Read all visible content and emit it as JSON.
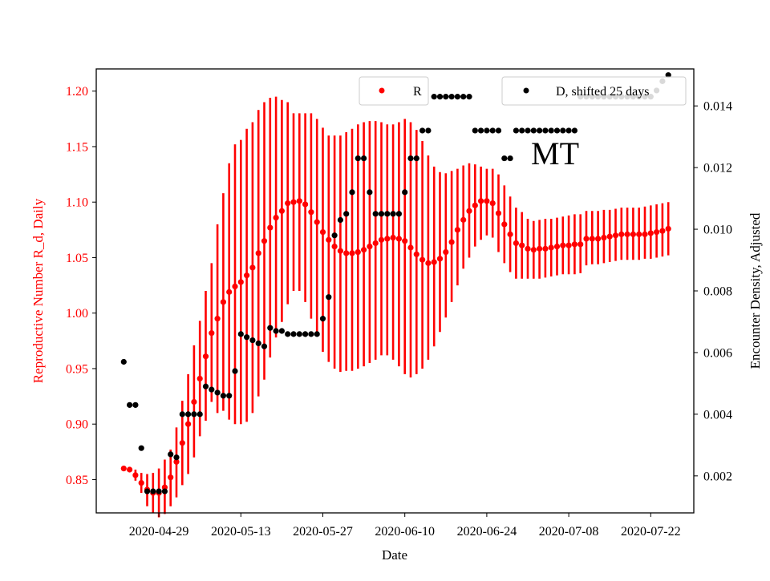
{
  "chart_data": {
    "type": "scatter",
    "annotation": "MT",
    "xlabel": "Date",
    "ylabel_left": "Reproductive Number R_d, Daily",
    "ylabel_right": "Encounter Density, Adjusted",
    "x_start": "2020-04-22",
    "x_ticks": [
      "2020-04-29",
      "2020-05-13",
      "2020-05-27",
      "2020-06-10",
      "2020-06-24",
      "2020-07-08",
      "2020-07-22"
    ],
    "ylim_left": [
      0.82,
      1.22
    ],
    "yticks_left": [
      "0.85",
      "0.90",
      "0.95",
      "1.00",
      "1.05",
      "1.10",
      "1.15",
      "1.20"
    ],
    "ylim_right": [
      0.0008,
      0.0152
    ],
    "yticks_right": [
      "0.002",
      "0.004",
      "0.006",
      "0.008",
      "0.010",
      "0.012",
      "0.014"
    ],
    "colors": {
      "R": "#ff0000",
      "D": "#000000"
    },
    "legend": [
      {
        "label": "R",
        "color": "#ff0000",
        "placement": "upper-center"
      },
      {
        "label": "D, shifted 25 days",
        "color": "#000000",
        "placement": "upper-right"
      }
    ],
    "series": [
      {
        "name": "R",
        "axis": "left",
        "x": [
          "2020-04-23",
          "2020-04-24",
          "2020-04-25",
          "2020-04-26",
          "2020-04-27",
          "2020-04-28",
          "2020-04-29",
          "2020-04-30",
          "2020-05-01",
          "2020-05-02",
          "2020-05-03",
          "2020-05-04",
          "2020-05-05",
          "2020-05-06",
          "2020-05-07",
          "2020-05-08",
          "2020-05-09",
          "2020-05-10",
          "2020-05-11",
          "2020-05-12",
          "2020-05-13",
          "2020-05-14",
          "2020-05-15",
          "2020-05-16",
          "2020-05-17",
          "2020-05-18",
          "2020-05-19",
          "2020-05-20",
          "2020-05-21",
          "2020-05-22",
          "2020-05-23",
          "2020-05-24",
          "2020-05-25",
          "2020-05-26",
          "2020-05-27",
          "2020-05-28",
          "2020-05-29",
          "2020-05-30",
          "2020-05-31",
          "2020-06-01",
          "2020-06-02",
          "2020-06-03",
          "2020-06-04",
          "2020-06-05",
          "2020-06-06",
          "2020-06-07",
          "2020-06-08",
          "2020-06-09",
          "2020-06-10",
          "2020-06-11",
          "2020-06-12",
          "2020-06-13",
          "2020-06-14",
          "2020-06-15",
          "2020-06-16",
          "2020-06-17",
          "2020-06-18",
          "2020-06-19",
          "2020-06-20",
          "2020-06-21",
          "2020-06-22",
          "2020-06-23",
          "2020-06-24",
          "2020-06-25",
          "2020-06-26",
          "2020-06-27",
          "2020-06-28",
          "2020-06-29",
          "2020-06-30",
          "2020-07-01",
          "2020-07-02",
          "2020-07-03",
          "2020-07-04",
          "2020-07-05",
          "2020-07-06",
          "2020-07-07",
          "2020-07-08",
          "2020-07-09",
          "2020-07-10",
          "2020-07-11",
          "2020-07-12",
          "2020-07-13",
          "2020-07-14",
          "2020-07-15",
          "2020-07-16",
          "2020-07-17",
          "2020-07-18",
          "2020-07-19",
          "2020-07-20",
          "2020-07-21",
          "2020-07-22",
          "2020-07-23",
          "2020-07-24",
          "2020-07-25"
        ],
        "values": [
          0.86,
          0.859,
          0.854,
          0.847,
          0.841,
          0.838,
          0.838,
          0.843,
          0.852,
          0.866,
          0.883,
          0.9,
          0.92,
          0.941,
          0.961,
          0.982,
          0.995,
          1.01,
          1.019,
          1.024,
          1.028,
          1.034,
          1.041,
          1.054,
          1.065,
          1.077,
          1.086,
          1.092,
          1.099,
          1.1,
          1.101,
          1.098,
          1.091,
          1.082,
          1.073,
          1.066,
          1.06,
          1.056,
          1.054,
          1.054,
          1.055,
          1.057,
          1.06,
          1.063,
          1.066,
          1.067,
          1.068,
          1.067,
          1.065,
          1.059,
          1.053,
          1.048,
          1.045,
          1.046,
          1.049,
          1.055,
          1.064,
          1.075,
          1.084,
          1.092,
          1.097,
          1.101,
          1.101,
          1.099,
          1.09,
          1.08,
          1.071,
          1.063,
          1.061,
          1.058,
          1.057,
          1.058,
          1.058,
          1.059,
          1.06,
          1.061,
          1.061,
          1.062,
          1.062,
          1.067,
          1.067,
          1.067,
          1.068,
          1.069,
          1.07,
          1.071,
          1.071,
          1.071,
          1.071,
          1.071,
          1.072,
          1.073,
          1.074,
          1.076
        ],
        "err_low": [
          0.86,
          0.859,
          0.849,
          0.838,
          0.826,
          0.82,
          0.816,
          0.819,
          0.826,
          0.834,
          0.845,
          0.855,
          0.87,
          0.889,
          0.903,
          0.92,
          0.91,
          0.912,
          0.904,
          0.9,
          0.9,
          0.902,
          0.91,
          0.925,
          0.94,
          0.96,
          0.978,
          0.992,
          1.008,
          1.02,
          1.02,
          1.01,
          0.995,
          0.98,
          0.965,
          0.956,
          0.95,
          0.947,
          0.948,
          0.948,
          0.95,
          0.952,
          0.955,
          0.958,
          0.962,
          0.962,
          0.958,
          0.952,
          0.945,
          0.942,
          0.945,
          0.95,
          0.958,
          0.97,
          0.983,
          0.996,
          1.01,
          1.025,
          1.04,
          1.05,
          1.06,
          1.066,
          1.07,
          1.068,
          1.055,
          1.045,
          1.037,
          1.031,
          1.031,
          1.031,
          1.031,
          1.031,
          1.032,
          1.033,
          1.034,
          1.035,
          1.035,
          1.035,
          1.036,
          1.043,
          1.044,
          1.044,
          1.045,
          1.046,
          1.047,
          1.048,
          1.048,
          1.048,
          1.048,
          1.049,
          1.049,
          1.05,
          1.051,
          1.052
        ],
        "err_high": [
          0.86,
          0.859,
          0.859,
          0.856,
          0.855,
          0.856,
          0.86,
          0.868,
          0.877,
          0.897,
          0.921,
          0.945,
          0.971,
          0.993,
          1.02,
          1.045,
          1.08,
          1.108,
          1.135,
          1.152,
          1.156,
          1.166,
          1.172,
          1.183,
          1.19,
          1.194,
          1.195,
          1.192,
          1.19,
          1.18,
          1.18,
          1.18,
          1.18,
          1.175,
          1.167,
          1.16,
          1.16,
          1.16,
          1.163,
          1.166,
          1.17,
          1.172,
          1.173,
          1.173,
          1.172,
          1.17,
          1.17,
          1.172,
          1.175,
          1.172,
          1.165,
          1.155,
          1.142,
          1.132,
          1.127,
          1.126,
          1.128,
          1.13,
          1.133,
          1.135,
          1.134,
          1.132,
          1.13,
          1.13,
          1.125,
          1.115,
          1.105,
          1.095,
          1.091,
          1.085,
          1.083,
          1.084,
          1.085,
          1.085,
          1.086,
          1.087,
          1.088,
          1.089,
          1.089,
          1.092,
          1.092,
          1.092,
          1.093,
          1.093,
          1.094,
          1.095,
          1.095,
          1.095,
          1.095,
          1.096,
          1.097,
          1.098,
          1.099,
          1.1
        ]
      },
      {
        "name": "D, shifted 25 days",
        "axis": "right",
        "x": [
          "2020-04-23",
          "2020-04-24",
          "2020-04-25",
          "2020-04-26",
          "2020-04-27",
          "2020-04-28",
          "2020-04-29",
          "2020-04-30",
          "2020-05-01",
          "2020-05-02",
          "2020-05-03",
          "2020-05-04",
          "2020-05-05",
          "2020-05-06",
          "2020-05-07",
          "2020-05-08",
          "2020-05-09",
          "2020-05-10",
          "2020-05-11",
          "2020-05-12",
          "2020-05-13",
          "2020-05-14",
          "2020-05-15",
          "2020-05-16",
          "2020-05-17",
          "2020-05-18",
          "2020-05-19",
          "2020-05-20",
          "2020-05-21",
          "2020-05-22",
          "2020-05-23",
          "2020-05-24",
          "2020-05-25",
          "2020-05-26",
          "2020-05-27",
          "2020-05-28",
          "2020-05-29",
          "2020-05-30",
          "2020-05-31",
          "2020-06-01",
          "2020-06-02",
          "2020-06-03",
          "2020-06-04",
          "2020-06-05",
          "2020-06-06",
          "2020-06-07",
          "2020-06-08",
          "2020-06-09",
          "2020-06-10",
          "2020-06-11",
          "2020-06-12",
          "2020-06-13",
          "2020-06-14",
          "2020-06-15",
          "2020-06-16",
          "2020-06-17",
          "2020-06-18",
          "2020-06-19",
          "2020-06-20",
          "2020-06-21",
          "2020-06-22",
          "2020-06-23",
          "2020-06-24",
          "2020-06-25",
          "2020-06-26",
          "2020-06-27",
          "2020-06-28",
          "2020-06-29",
          "2020-06-30",
          "2020-07-01",
          "2020-07-02",
          "2020-07-03",
          "2020-07-04",
          "2020-07-05",
          "2020-07-06",
          "2020-07-07",
          "2020-07-08",
          "2020-07-09",
          "2020-07-10",
          "2020-07-11",
          "2020-07-12",
          "2020-07-13",
          "2020-07-14",
          "2020-07-15",
          "2020-07-16",
          "2020-07-17",
          "2020-07-18",
          "2020-07-19",
          "2020-07-20",
          "2020-07-21",
          "2020-07-22",
          "2020-07-23",
          "2020-07-24",
          "2020-07-25"
        ],
        "values": [
          0.0057,
          0.0043,
          0.0043,
          0.0029,
          0.0015,
          0.0015,
          0.0015,
          0.0015,
          0.0027,
          0.0026,
          0.004,
          0.004,
          0.004,
          0.004,
          0.0049,
          0.0048,
          0.0047,
          0.0046,
          0.0046,
          0.0054,
          0.0066,
          0.0065,
          0.0064,
          0.0063,
          0.0062,
          0.0068,
          0.0067,
          0.0067,
          0.0066,
          0.0066,
          0.0066,
          0.0066,
          0.0066,
          0.0066,
          0.0071,
          0.0078,
          0.0098,
          0.0103,
          0.0105,
          0.0112,
          0.0123,
          0.0123,
          0.0112,
          0.0105,
          0.0105,
          0.0105,
          0.0105,
          0.0105,
          0.0112,
          0.0123,
          0.0123,
          0.0132,
          0.0132,
          0.0143,
          0.0143,
          0.0143,
          0.0143,
          0.0143,
          0.0143,
          0.0143,
          0.0132,
          0.0132,
          0.0132,
          0.0132,
          0.0132,
          0.0123,
          0.0123,
          0.0132,
          0.0132,
          0.0132,
          0.0132,
          0.0132,
          0.0132,
          0.0132,
          0.0132,
          0.0132,
          0.0132,
          0.0132,
          0.0143,
          0.0143,
          0.0143,
          0.0143,
          0.0143,
          0.0143,
          0.0143,
          0.0143,
          0.0143,
          0.0143,
          0.0143,
          0.0143,
          0.0143,
          0.0145,
          0.0148,
          0.015
        ]
      }
    ]
  }
}
